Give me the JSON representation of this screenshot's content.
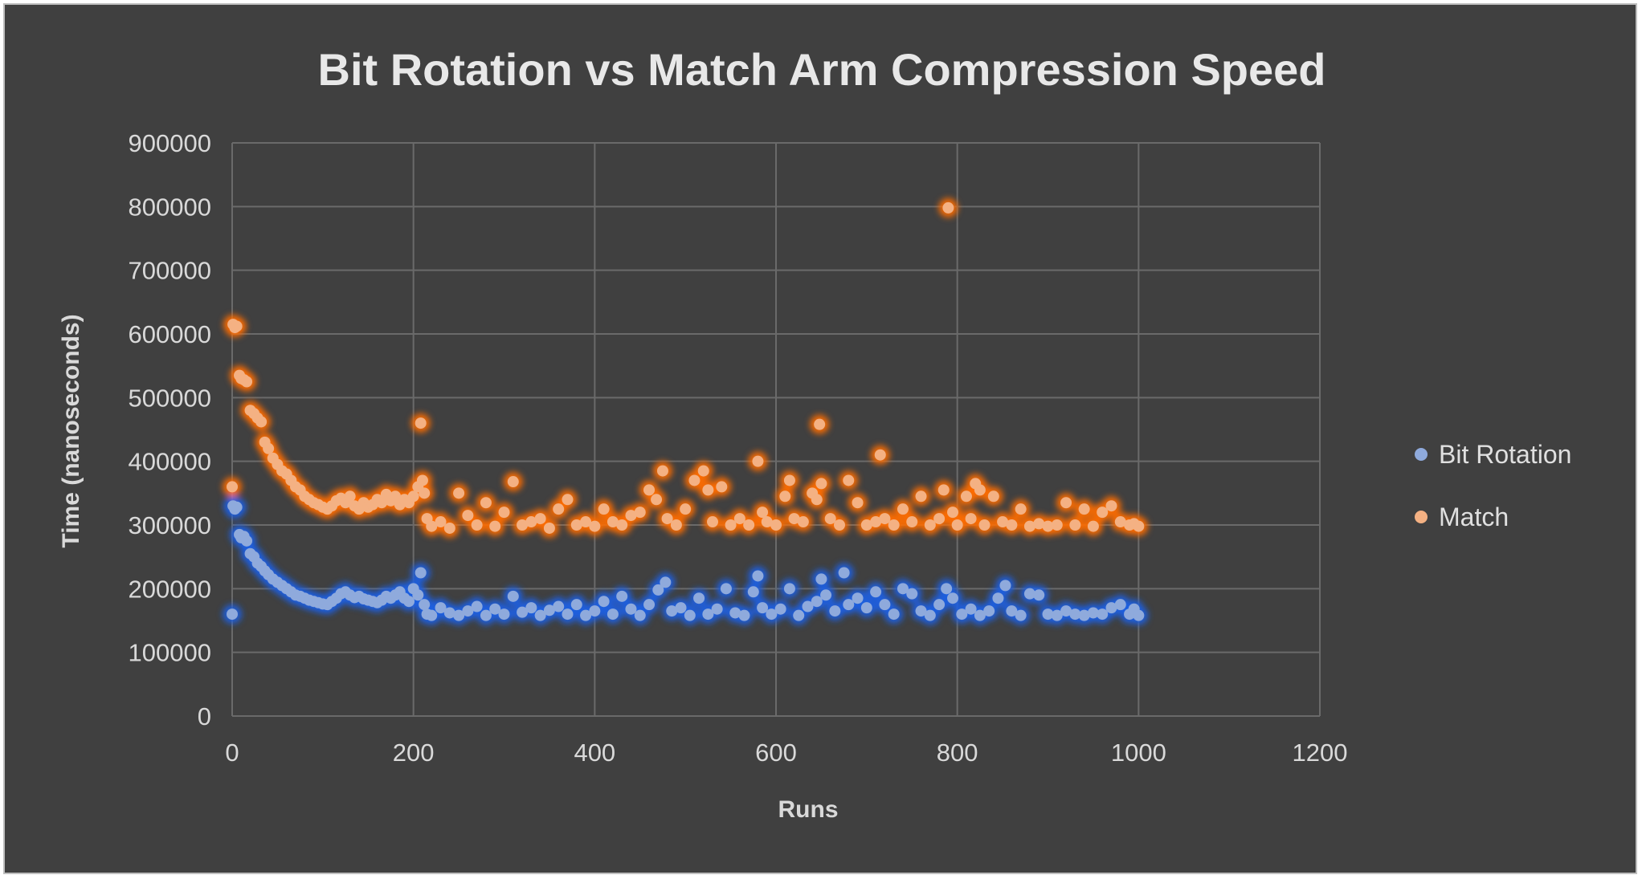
{
  "chart_data": {
    "type": "scatter",
    "title": "Bit Rotation vs Match Arm Compression Speed",
    "xlabel": "Runs",
    "ylabel": "Time (nanoseconds)",
    "xlim": [
      0,
      1200
    ],
    "ylim": [
      0,
      900000
    ],
    "x_ticks": [
      0,
      200,
      400,
      600,
      800,
      1000,
      1200
    ],
    "y_ticks": [
      0,
      100000,
      200000,
      300000,
      400000,
      500000,
      600000,
      700000,
      800000,
      900000
    ],
    "x_tick_labels": [
      "0",
      "200",
      "400",
      "600",
      "800",
      "1000",
      "1200"
    ],
    "y_tick_labels": [
      "0",
      "100000",
      "200000",
      "300000",
      "400000",
      "500000",
      "600000",
      "700000",
      "800000",
      "900000"
    ],
    "grid": true,
    "legend_position": "right",
    "series": [
      {
        "name": "Bit Rotation",
        "color": "#8faadc",
        "glow": "#1f5fe0",
        "points": [
          [
            0,
            160000
          ],
          [
            1,
            330000
          ],
          [
            3,
            325000
          ],
          [
            5,
            328000
          ],
          [
            8,
            285000
          ],
          [
            10,
            280000
          ],
          [
            13,
            282000
          ],
          [
            16,
            275000
          ],
          [
            20,
            255000
          ],
          [
            24,
            250000
          ],
          [
            28,
            240000
          ],
          [
            32,
            235000
          ],
          [
            36,
            228000
          ],
          [
            40,
            222000
          ],
          [
            45,
            215000
          ],
          [
            50,
            210000
          ],
          [
            55,
            205000
          ],
          [
            60,
            200000
          ],
          [
            65,
            195000
          ],
          [
            70,
            190000
          ],
          [
            75,
            188000
          ],
          [
            80,
            185000
          ],
          [
            85,
            182000
          ],
          [
            90,
            180000
          ],
          [
            95,
            178000
          ],
          [
            100,
            176000
          ],
          [
            105,
            175000
          ],
          [
            110,
            180000
          ],
          [
            115,
            185000
          ],
          [
            120,
            192000
          ],
          [
            125,
            195000
          ],
          [
            130,
            190000
          ],
          [
            135,
            186000
          ],
          [
            140,
            188000
          ],
          [
            145,
            184000
          ],
          [
            150,
            182000
          ],
          [
            155,
            180000
          ],
          [
            160,
            178000
          ],
          [
            165,
            182000
          ],
          [
            170,
            188000
          ],
          [
            175,
            185000
          ],
          [
            180,
            190000
          ],
          [
            185,
            195000
          ],
          [
            190,
            185000
          ],
          [
            195,
            180000
          ],
          [
            200,
            200000
          ],
          [
            205,
            190000
          ],
          [
            208,
            225000
          ],
          [
            212,
            175000
          ],
          [
            215,
            160000
          ],
          [
            220,
            158000
          ],
          [
            230,
            170000
          ],
          [
            240,
            162000
          ],
          [
            250,
            158000
          ],
          [
            260,
            165000
          ],
          [
            270,
            172000
          ],
          [
            280,
            158000
          ],
          [
            290,
            168000
          ],
          [
            300,
            160000
          ],
          [
            310,
            188000
          ],
          [
            320,
            163000
          ],
          [
            330,
            170000
          ],
          [
            340,
            158000
          ],
          [
            350,
            166000
          ],
          [
            360,
            172000
          ],
          [
            370,
            160000
          ],
          [
            380,
            175000
          ],
          [
            390,
            158000
          ],
          [
            400,
            165000
          ],
          [
            410,
            180000
          ],
          [
            420,
            160000
          ],
          [
            430,
            188000
          ],
          [
            440,
            168000
          ],
          [
            450,
            158000
          ],
          [
            460,
            175000
          ],
          [
            470,
            198000
          ],
          [
            478,
            210000
          ],
          [
            485,
            165000
          ],
          [
            495,
            170000
          ],
          [
            505,
            158000
          ],
          [
            515,
            185000
          ],
          [
            525,
            160000
          ],
          [
            535,
            168000
          ],
          [
            545,
            200000
          ],
          [
            555,
            162000
          ],
          [
            565,
            158000
          ],
          [
            575,
            195000
          ],
          [
            580,
            220000
          ],
          [
            585,
            170000
          ],
          [
            595,
            160000
          ],
          [
            605,
            168000
          ],
          [
            615,
            200000
          ],
          [
            625,
            158000
          ],
          [
            635,
            172000
          ],
          [
            645,
            180000
          ],
          [
            650,
            215000
          ],
          [
            655,
            190000
          ],
          [
            665,
            165000
          ],
          [
            675,
            225000
          ],
          [
            680,
            175000
          ],
          [
            690,
            185000
          ],
          [
            700,
            170000
          ],
          [
            710,
            195000
          ],
          [
            720,
            175000
          ],
          [
            730,
            160000
          ],
          [
            740,
            200000
          ],
          [
            750,
            192000
          ],
          [
            760,
            165000
          ],
          [
            770,
            158000
          ],
          [
            780,
            175000
          ],
          [
            788,
            200000
          ],
          [
            795,
            185000
          ],
          [
            805,
            160000
          ],
          [
            815,
            168000
          ],
          [
            825,
            158000
          ],
          [
            835,
            165000
          ],
          [
            845,
            185000
          ],
          [
            853,
            205000
          ],
          [
            860,
            165000
          ],
          [
            870,
            158000
          ],
          [
            880,
            192000
          ],
          [
            890,
            190000
          ],
          [
            900,
            160000
          ],
          [
            910,
            158000
          ],
          [
            920,
            165000
          ],
          [
            930,
            160000
          ],
          [
            940,
            158000
          ],
          [
            950,
            162000
          ],
          [
            960,
            160000
          ],
          [
            970,
            170000
          ],
          [
            980,
            175000
          ],
          [
            990,
            160000
          ],
          [
            995,
            168000
          ],
          [
            1000,
            158000
          ]
        ]
      },
      {
        "name": "Match",
        "color": "#f4b183",
        "glow": "#ff6d00",
        "points": [
          [
            0,
            360000
          ],
          [
            1,
            615000
          ],
          [
            3,
            610000
          ],
          [
            5,
            612000
          ],
          [
            8,
            535000
          ],
          [
            10,
            530000
          ],
          [
            13,
            528000
          ],
          [
            16,
            525000
          ],
          [
            20,
            480000
          ],
          [
            24,
            475000
          ],
          [
            28,
            468000
          ],
          [
            32,
            462000
          ],
          [
            36,
            430000
          ],
          [
            40,
            420000
          ],
          [
            45,
            405000
          ],
          [
            50,
            395000
          ],
          [
            55,
            385000
          ],
          [
            60,
            380000
          ],
          [
            65,
            370000
          ],
          [
            70,
            360000
          ],
          [
            75,
            355000
          ],
          [
            80,
            345000
          ],
          [
            85,
            340000
          ],
          [
            90,
            335000
          ],
          [
            95,
            332000
          ],
          [
            100,
            328000
          ],
          [
            105,
            325000
          ],
          [
            110,
            330000
          ],
          [
            115,
            338000
          ],
          [
            120,
            342000
          ],
          [
            125,
            335000
          ],
          [
            130,
            345000
          ],
          [
            135,
            330000
          ],
          [
            140,
            325000
          ],
          [
            145,
            335000
          ],
          [
            150,
            328000
          ],
          [
            155,
            332000
          ],
          [
            160,
            340000
          ],
          [
            165,
            335000
          ],
          [
            170,
            348000
          ],
          [
            175,
            338000
          ],
          [
            180,
            345000
          ],
          [
            185,
            332000
          ],
          [
            190,
            340000
          ],
          [
            195,
            335000
          ],
          [
            200,
            345000
          ],
          [
            205,
            360000
          ],
          [
            208,
            460000
          ],
          [
            210,
            370000
          ],
          [
            212,
            350000
          ],
          [
            215,
            310000
          ],
          [
            220,
            298000
          ],
          [
            230,
            305000
          ],
          [
            240,
            295000
          ],
          [
            250,
            350000
          ],
          [
            260,
            315000
          ],
          [
            270,
            300000
          ],
          [
            280,
            335000
          ],
          [
            290,
            298000
          ],
          [
            300,
            320000
          ],
          [
            310,
            368000
          ],
          [
            320,
            300000
          ],
          [
            330,
            305000
          ],
          [
            340,
            310000
          ],
          [
            350,
            295000
          ],
          [
            360,
            325000
          ],
          [
            370,
            340000
          ],
          [
            380,
            300000
          ],
          [
            390,
            305000
          ],
          [
            400,
            298000
          ],
          [
            410,
            325000
          ],
          [
            420,
            305000
          ],
          [
            430,
            300000
          ],
          [
            440,
            315000
          ],
          [
            450,
            320000
          ],
          [
            460,
            355000
          ],
          [
            468,
            340000
          ],
          [
            475,
            385000
          ],
          [
            480,
            310000
          ],
          [
            490,
            300000
          ],
          [
            500,
            325000
          ],
          [
            510,
            370000
          ],
          [
            520,
            385000
          ],
          [
            525,
            355000
          ],
          [
            530,
            305000
          ],
          [
            540,
            360000
          ],
          [
            550,
            300000
          ],
          [
            560,
            310000
          ],
          [
            570,
            300000
          ],
          [
            580,
            400000
          ],
          [
            585,
            320000
          ],
          [
            590,
            305000
          ],
          [
            600,
            300000
          ],
          [
            610,
            345000
          ],
          [
            615,
            370000
          ],
          [
            620,
            310000
          ],
          [
            630,
            305000
          ],
          [
            640,
            350000
          ],
          [
            645,
            340000
          ],
          [
            648,
            458000
          ],
          [
            650,
            365000
          ],
          [
            660,
            310000
          ],
          [
            670,
            300000
          ],
          [
            680,
            370000
          ],
          [
            690,
            335000
          ],
          [
            700,
            300000
          ],
          [
            710,
            305000
          ],
          [
            715,
            410000
          ],
          [
            720,
            310000
          ],
          [
            730,
            300000
          ],
          [
            740,
            325000
          ],
          [
            750,
            305000
          ],
          [
            760,
            345000
          ],
          [
            770,
            300000
          ],
          [
            780,
            310000
          ],
          [
            785,
            355000
          ],
          [
            790,
            798000
          ],
          [
            795,
            320000
          ],
          [
            800,
            300000
          ],
          [
            810,
            345000
          ],
          [
            815,
            310000
          ],
          [
            820,
            365000
          ],
          [
            825,
            355000
          ],
          [
            830,
            300000
          ],
          [
            840,
            345000
          ],
          [
            850,
            305000
          ],
          [
            860,
            300000
          ],
          [
            870,
            325000
          ],
          [
            880,
            298000
          ],
          [
            890,
            302000
          ],
          [
            900,
            298000
          ],
          [
            910,
            300000
          ],
          [
            920,
            335000
          ],
          [
            930,
            300000
          ],
          [
            940,
            325000
          ],
          [
            950,
            298000
          ],
          [
            960,
            320000
          ],
          [
            970,
            330000
          ],
          [
            980,
            305000
          ],
          [
            990,
            300000
          ],
          [
            995,
            302000
          ],
          [
            1000,
            298000
          ]
        ]
      }
    ]
  }
}
